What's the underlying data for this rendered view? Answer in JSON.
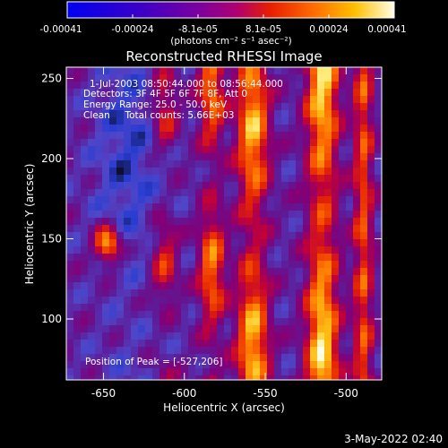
{
  "colorbar": {
    "tick_labels": [
      "-0.00041",
      "-0.00024",
      "-8.1e-05",
      "8.1e-05",
      "0.00024",
      "0.00041"
    ],
    "unit_label": "(photons cm⁻² s⁻¹ asec⁻²)",
    "range": [
      -0.00041,
      0.00041
    ]
  },
  "title": "Reconstructed RHESSI Image",
  "annotations": {
    "time_range": "1-Jul-2003 08:50:44.000 to 08:56:44.000",
    "detectors": "Detectors: 3F 4F 5F 6F 7F 8F, Att 0",
    "energy_range": "Energy Range: 25.0 - 50.0 keV",
    "clean_counts": "Clean     Total counts: 5.66E+03",
    "peak": "Position of Peak = [-527,206]"
  },
  "axes": {
    "xlabel": "Heliocentric X (arcsec)",
    "ylabel": "Heliocentric Y (arcsec)",
    "xlim": [
      -673,
      -478
    ],
    "ylim": [
      62,
      257
    ],
    "x_ticks": [
      {
        "value": -650,
        "label": "-650"
      },
      {
        "value": -600,
        "label": "-600"
      },
      {
        "value": -550,
        "label": "-550"
      },
      {
        "value": -500,
        "label": "-500"
      }
    ],
    "y_ticks": [
      {
        "value": 100,
        "label": "100"
      },
      {
        "value": 150,
        "label": "150"
      },
      {
        "value": 200,
        "label": "200"
      },
      {
        "value": 250,
        "label": "250"
      }
    ]
  },
  "footer": {
    "date": "3-May-2022 02:40"
  }
}
